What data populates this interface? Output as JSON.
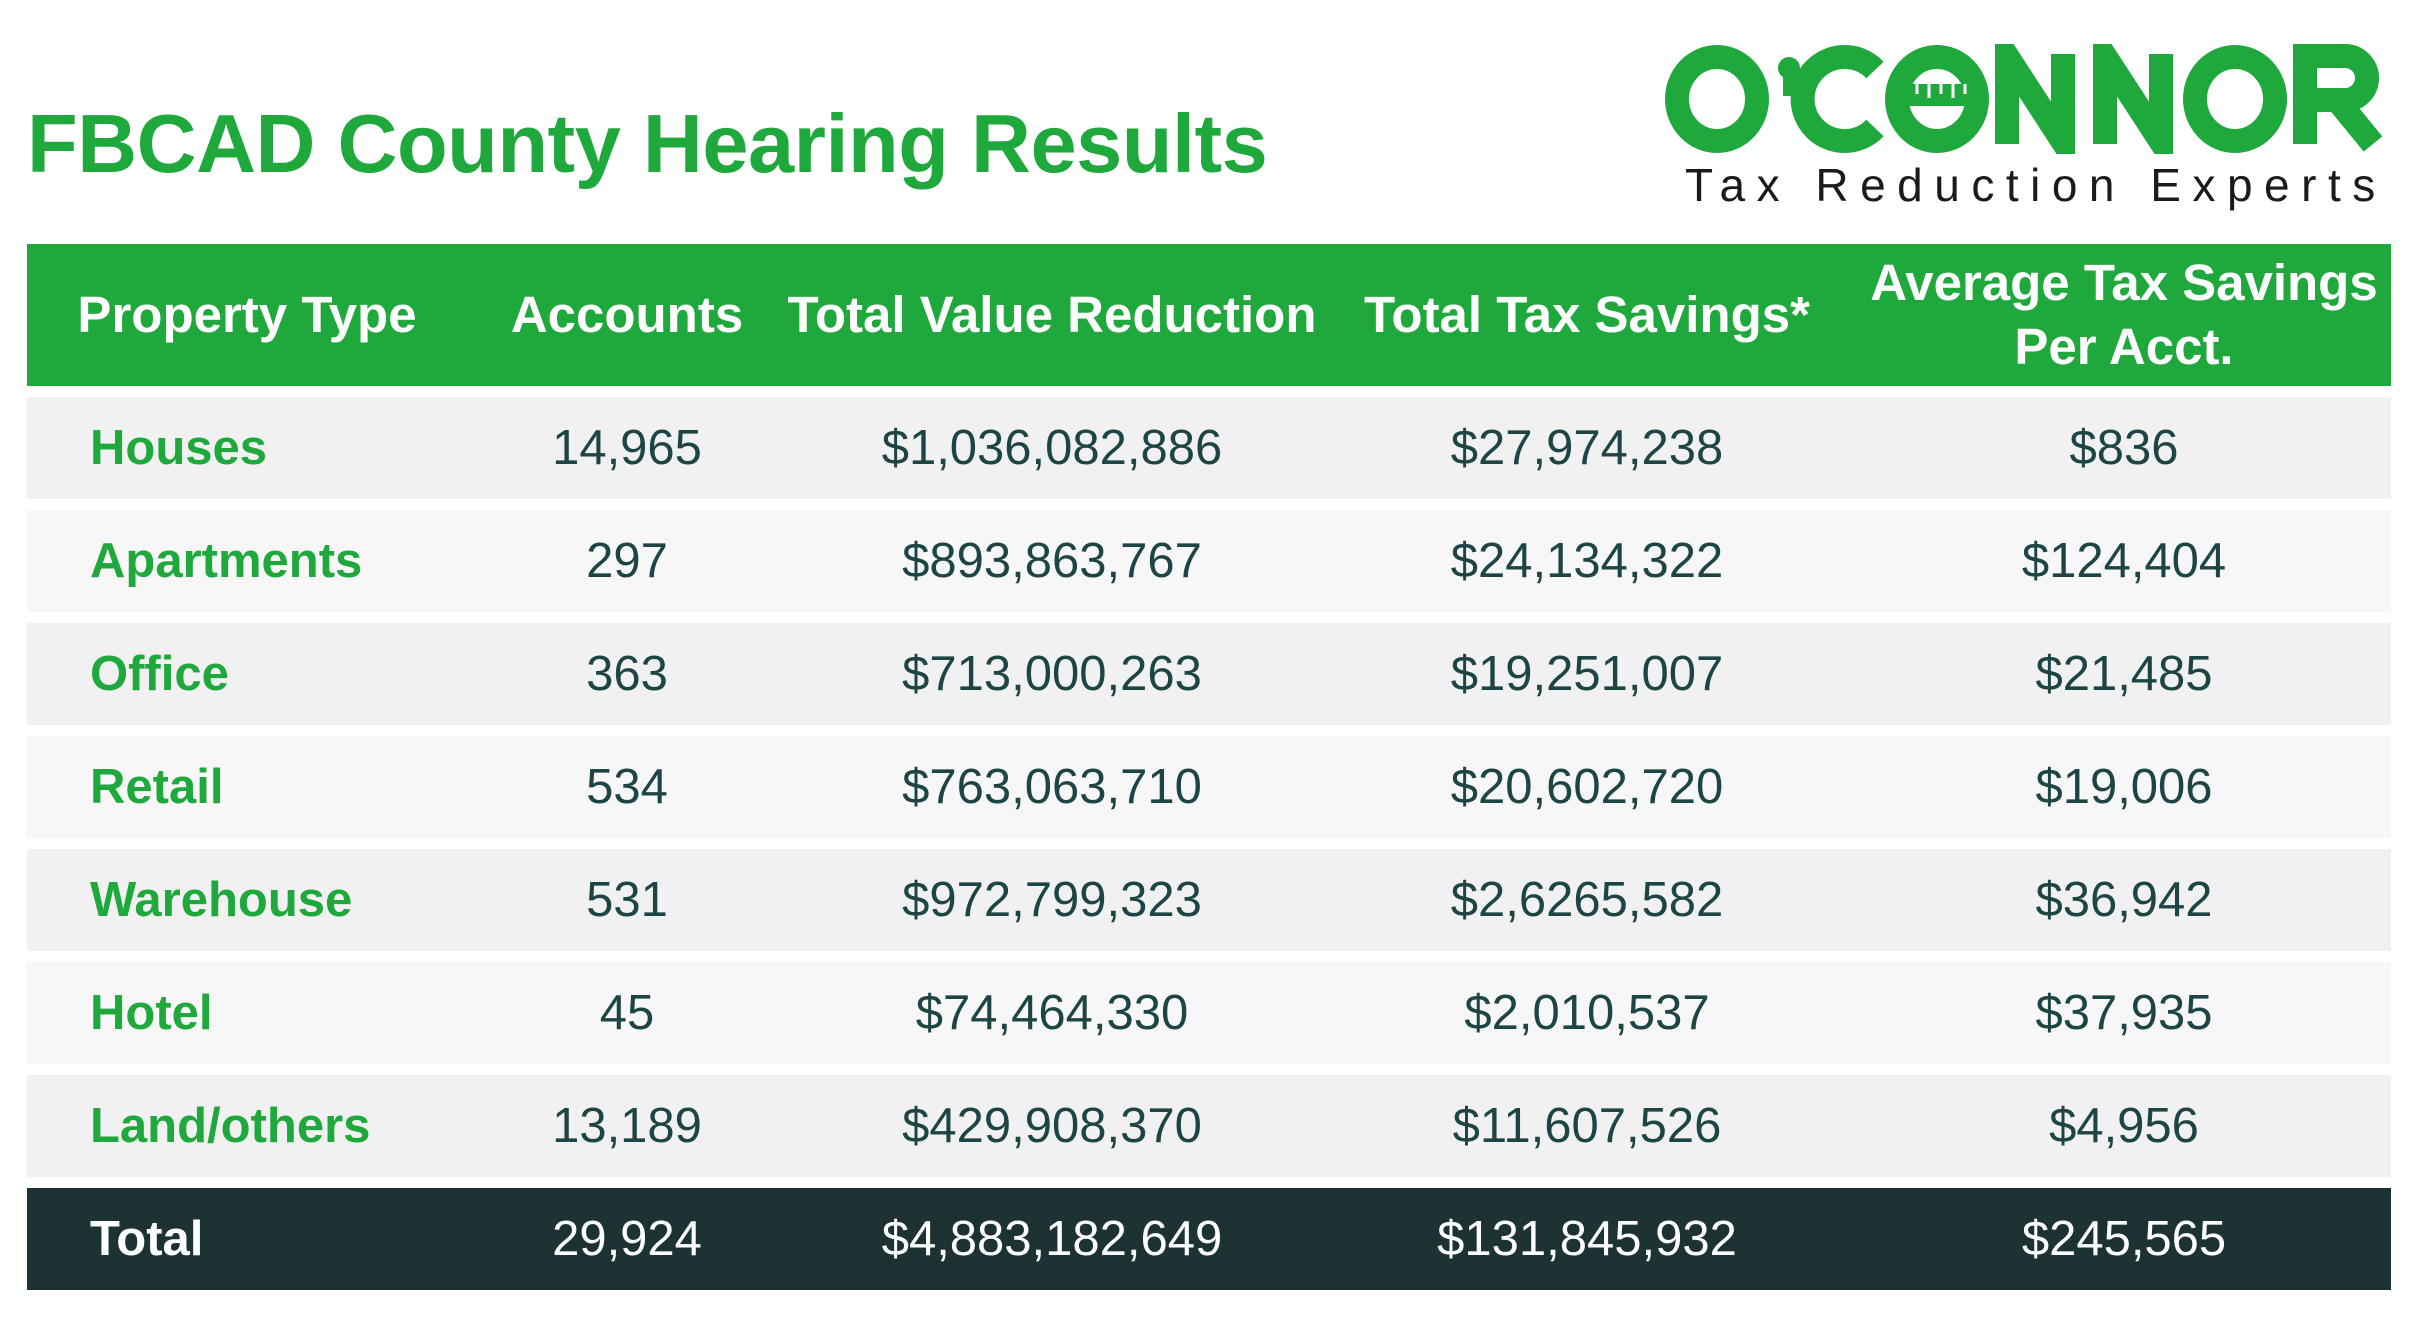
{
  "title": "FBCAD County Hearing Results",
  "logo": {
    "wordmark": "O'CONNOR",
    "tagline": "Tax Reduction Experts",
    "brand_color": "#1fa83c"
  },
  "colors": {
    "header_bg": "#1fa83c",
    "total_bg": "#1c3233",
    "property_text": "#1fa83c",
    "value_text": "#1e4545",
    "row_bg_odd": "#f1f1f1",
    "row_bg_even": "#f7f7f7"
  },
  "chart_data": {
    "type": "table",
    "columns": [
      "Property Type",
      "Accounts",
      "Total Value Reduction",
      "Total Tax Savings*",
      "Average Tax Savings Per Acct."
    ],
    "rows": [
      [
        "Houses",
        "14,965",
        "$1,036,082,886",
        "$27,974,238",
        "$836"
      ],
      [
        "Apartments",
        "297",
        "$893,863,767",
        "$24,134,322",
        "$124,404"
      ],
      [
        "Office",
        "363",
        "$713,000,263",
        "$19,251,007",
        "$21,485"
      ],
      [
        "Retail",
        "534",
        "$763,063,710",
        "$20,602,720",
        "$19,006"
      ],
      [
        "Warehouse",
        "531",
        "$972,799,323",
        "$2,6265,582",
        "$36,942"
      ],
      [
        "Hotel",
        "45",
        "$74,464,330",
        "$2,010,537",
        "$37,935"
      ],
      [
        "Land/others",
        "13,189",
        "$429,908,370",
        "$11,607,526",
        "$4,956"
      ]
    ],
    "total": [
      "Total",
      "29,924",
      "$4,883,182,649",
      "$131,845,932",
      "$245,565"
    ]
  }
}
